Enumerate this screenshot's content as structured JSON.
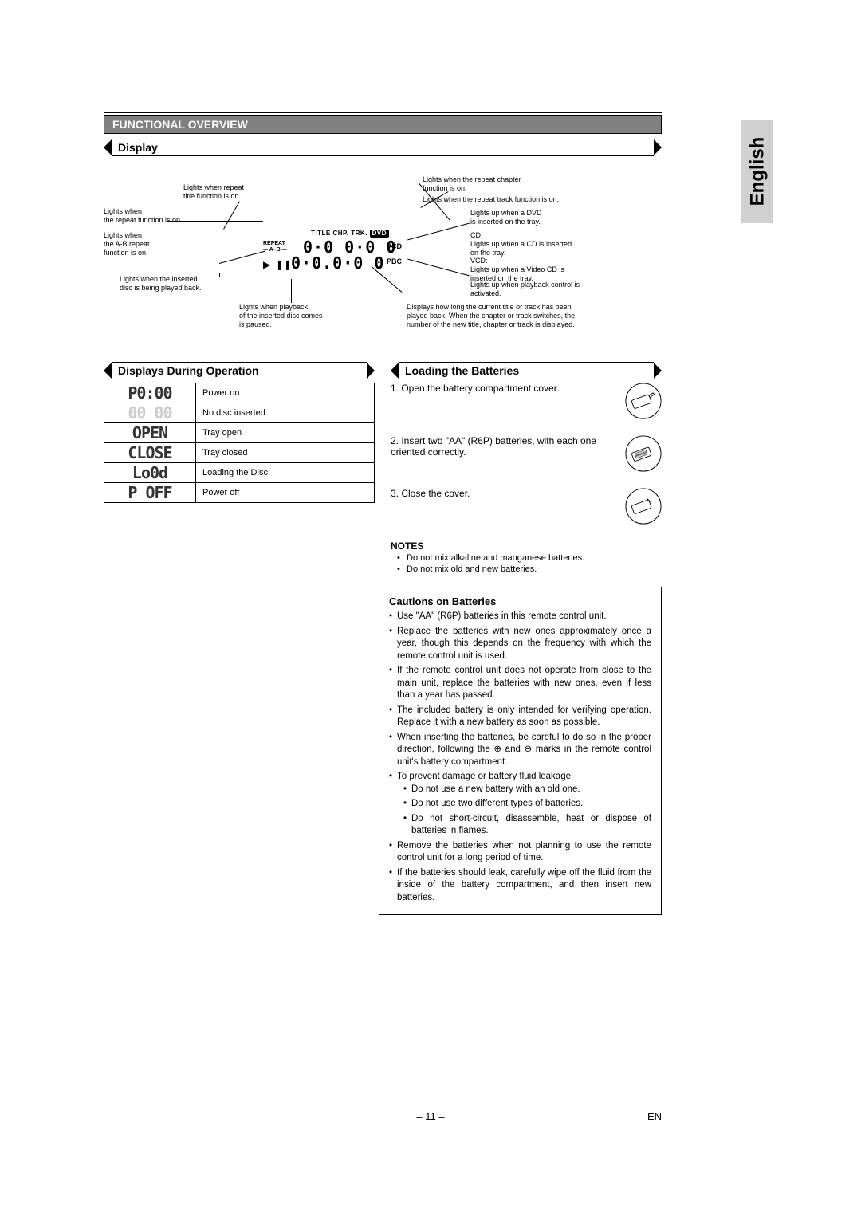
{
  "language_tab": "English",
  "header": "FUNCTIONAL OVERVIEW",
  "section_display": "Display",
  "section_ops": "Displays During Operation",
  "section_batt": "Loading the Batteries",
  "callouts": {
    "left1": "Lights when\nthe repeat function is on.",
    "left2": "Lights when\nthe A-B repeat\nfunction is on.",
    "left3": "Lights when the inserted\ndisc is being played back.",
    "top1": "Lights when repeat\ntitle function is on.",
    "bottom1": "Lights when playback\nof the inserted disc comes\nis paused.",
    "right_top1": "Lights when the repeat chapter\nfunction is on.",
    "right_top2": "Lights when the repeat track function is on.",
    "right1": "Lights up when a DVD\nis inserted on the tray.",
    "right2": "CD:\nLights up when a CD is inserted\non the tray.\nVCD:\nLights up when a Video CD is\ninserted on the tray.",
    "right3": "Lights up when playback control is\nactivated.",
    "right4": "Displays how long the current title or track has been\nplayed back. When the chapter or track switches, the\nnumber of the new title, chapter or track is displayed."
  },
  "lcd": {
    "top_labels": "TITLE      CHP. TRK.",
    "dvd": "DVD",
    "vcd": "VCD",
    "pbc": "PBC",
    "repeat": "REPEAT",
    "ab": "A–B",
    "digits1": "0·0 0·0 0",
    "digits2": "0·0.0·0 0"
  },
  "ops_table": [
    {
      "seg": "P0:00",
      "label": "Power on"
    },
    {
      "seg": "00 00",
      "label": "No disc inserted",
      "dim": true
    },
    {
      "seg": "OPEN",
      "label": "Tray open"
    },
    {
      "seg": "CLOSE",
      "label": "Tray closed"
    },
    {
      "seg": "Lo0d",
      "label": "Loading the Disc"
    },
    {
      "seg": "P OFF",
      "label": "Power off"
    }
  ],
  "batt_steps": [
    "1. Open the battery compartment cover.",
    "2. Insert two \"AA\" (R6P) batteries, with each one oriented correctly.",
    "3. Close the cover."
  ],
  "notes_title": "NOTES",
  "notes": [
    "Do not mix alkaline and manganese batteries.",
    "Do not mix old and new batteries."
  ],
  "cautions_title": "Cautions on Batteries",
  "cautions": [
    "Use \"AA\" (R6P) batteries in this remote control unit.",
    "Replace the batteries with new ones approximately once a year, though this depends on the frequency with which the remote control unit is used.",
    "If the remote control unit does not operate from close to the main unit, replace the batteries with new ones, even if less than a year has passed.",
    "The included battery is only intended for verifying operation. Replace it with a new battery as soon as possible.",
    "When inserting the batteries, be careful to do so in the proper direction, following the ⊕ and ⊖ marks in the remote control unit's battery compartment.",
    "To prevent damage or battery fluid leakage:",
    "Remove the batteries when not planning to use the remote control unit for a long period of time.",
    "If the batteries should leak, carefully wipe off the fluid from the inside of the battery compartment, and then insert new batteries."
  ],
  "cautions_sub": [
    "Do not use a new battery with an old one.",
    "Do not use two different types of batteries.",
    "Do not short-circuit, disassemble, heat or dispose of batteries in flames."
  ],
  "page_number": "– 11 –",
  "page_lang": "EN"
}
